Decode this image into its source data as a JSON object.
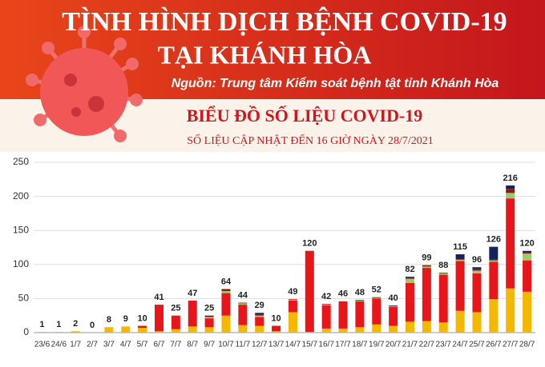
{
  "header": {
    "title_line1": "TÌNH HÌNH DỊCH BỆNH COVID-19",
    "title_line2": "TẠI KHÁNH HÒA",
    "source": "Nguồn: Trung tâm Kiểm soát bệnh tật tỉnh Khánh Hòa"
  },
  "chart_data": {
    "type": "stacked-bar",
    "title": "BIỂU ĐỒ SỐ LIỆU COVID-19",
    "subtitle": "SỐ LIỆU CẬP NHẬT ĐẾN 16 GIỜ NGÀY 28/7/2021",
    "categories": [
      "23/6",
      "24/6",
      "1/7",
      "2/7",
      "3/7",
      "4/7",
      "5/7",
      "6/7",
      "7/7",
      "8/7",
      "9/7",
      "10/7",
      "11/7",
      "12/7",
      "13/7",
      "14/7",
      "15/7",
      "16/7",
      "17/7",
      "18/7",
      "19/7",
      "20/7",
      "21/7",
      "22/7",
      "23/7",
      "24/7",
      "25/7",
      "26/7",
      "27/7",
      "28/7"
    ],
    "totals": [
      1,
      1,
      2,
      0,
      8,
      9,
      10,
      41,
      25,
      47,
      25,
      64,
      44,
      29,
      10,
      49,
      120,
      42,
      46,
      48,
      52,
      40,
      82,
      99,
      88,
      115,
      96,
      126,
      216,
      120
    ],
    "series": [
      {
        "color": "#f5b800",
        "values": [
          1,
          1,
          2,
          0,
          8,
          9,
          7,
          2,
          5,
          9,
          8,
          25,
          11,
          10,
          2,
          30,
          1,
          6,
          6,
          8,
          12,
          10,
          16,
          17,
          15,
          32,
          30,
          49,
          65,
          60
        ]
      },
      {
        "color": "#e8161b",
        "values": [
          0,
          0,
          0,
          0,
          0,
          0,
          3,
          39,
          20,
          38,
          13,
          33,
          30,
          13,
          8,
          17,
          118,
          34,
          40,
          38,
          38,
          28,
          57,
          78,
          70,
          73,
          57,
          55,
          132,
          46
        ]
      },
      {
        "color": "#9ccc65",
        "values": [
          0,
          0,
          0,
          0,
          0,
          0,
          0,
          0,
          0,
          0,
          2,
          3,
          2,
          2,
          0,
          1,
          0,
          1,
          0,
          1,
          1,
          1,
          6,
          2,
          2,
          2,
          4,
          2,
          8,
          10
        ]
      },
      {
        "color": "#8b1a1a",
        "values": [
          0,
          0,
          0,
          0,
          0,
          0,
          0,
          0,
          0,
          0,
          1,
          3,
          1,
          2,
          0,
          1,
          1,
          1,
          0,
          1,
          1,
          0,
          2,
          2,
          1,
          1,
          2,
          1,
          6,
          2
        ]
      },
      {
        "color": "#14245a",
        "values": [
          0,
          0,
          0,
          0,
          0,
          0,
          0,
          0,
          0,
          0,
          1,
          0,
          0,
          2,
          0,
          0,
          0,
          0,
          0,
          0,
          0,
          1,
          1,
          0,
          0,
          7,
          3,
          19,
          5,
          2
        ]
      }
    ],
    "ylim": [
      0,
      250
    ],
    "yticks": [
      0,
      50,
      100,
      150,
      200,
      250
    ],
    "grid": true
  }
}
